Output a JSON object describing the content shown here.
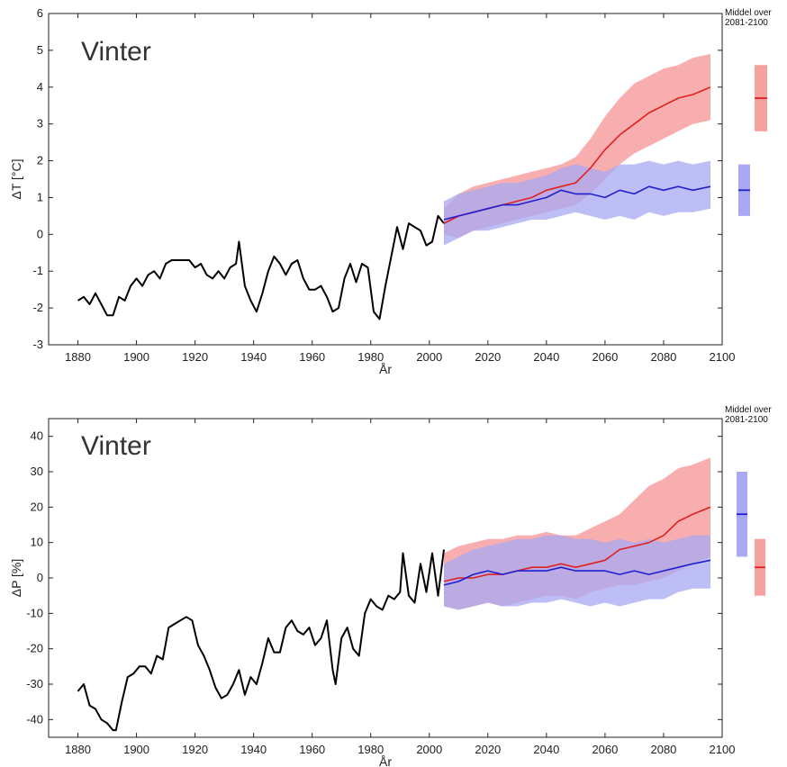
{
  "chart_data": [
    {
      "type": "line",
      "title": "Vinter",
      "xlabel": "År",
      "ylabel": "ΔT [°C]",
      "xlim": [
        1870,
        2100
      ],
      "ylim": [
        -3,
        6
      ],
      "xticks": [
        "1880",
        "1900",
        "1920",
        "1940",
        "1960",
        "1980",
        "2000",
        "2020",
        "2040",
        "2060",
        "2080",
        "2100"
      ],
      "yticks": [
        "-3",
        "-2",
        "-1",
        "0",
        "1",
        "2",
        "3",
        "4",
        "5",
        "6"
      ],
      "grid": false,
      "annotation": [
        "Middel over",
        "2081-2100"
      ],
      "colors": {
        "observed": "#000000",
        "high": "#e02020",
        "high_band": "#f7a0a0",
        "low": "#2020d0",
        "low_band": "#a8a8f4"
      },
      "series": [
        {
          "x": [
            1880,
            1882,
            1884,
            1886,
            1888,
            1890,
            1892,
            1894,
            1896,
            1898,
            1900,
            1902,
            1904,
            1906,
            1908,
            1910,
            1912,
            1914,
            1916,
            1918,
            1920,
            1922,
            1924,
            1926,
            1928,
            1930,
            1932,
            1934,
            1935,
            1937,
            1939,
            1941,
            1943,
            1945,
            1947,
            1949,
            1951,
            1953,
            1955,
            1957,
            1959,
            1961,
            1963,
            1965,
            1967,
            1969,
            1971,
            1973,
            1975,
            1977,
            1979,
            1981,
            1983,
            1985,
            1987,
            1989,
            1991,
            1993,
            1995,
            1997,
            1999,
            2001,
            2003,
            2005
          ],
          "values": [
            -1.8,
            -1.7,
            -1.9,
            -1.6,
            -1.9,
            -2.2,
            -2.2,
            -1.7,
            -1.8,
            -1.4,
            -1.2,
            -1.4,
            -1.1,
            -1.0,
            -1.2,
            -0.8,
            -0.7,
            -0.7,
            -0.7,
            -0.7,
            -0.9,
            -0.8,
            -1.1,
            -1.2,
            -1.0,
            -1.2,
            -0.9,
            -0.8,
            -0.2,
            -1.4,
            -1.8,
            -2.1,
            -1.6,
            -1.0,
            -0.6,
            -0.8,
            -1.1,
            -0.8,
            -0.7,
            -1.2,
            -1.5,
            -1.5,
            -1.4,
            -1.7,
            -2.1,
            -2.0,
            -1.2,
            -0.8,
            -1.3,
            -0.8,
            -0.9,
            -2.1,
            -2.3,
            -1.4,
            -0.6,
            0.2,
            -0.4,
            0.3,
            0.2,
            0.1,
            -0.3,
            -0.2,
            0.5,
            0.3
          ]
        },
        {
          "x": [
            2005,
            2010,
            2015,
            2020,
            2025,
            2030,
            2035,
            2040,
            2045,
            2050,
            2055,
            2060,
            2065,
            2070,
            2075,
            2080,
            2085,
            2090,
            2096
          ],
          "values": [
            0.3,
            0.5,
            0.6,
            0.7,
            0.8,
            0.9,
            1.0,
            1.2,
            1.3,
            1.4,
            1.8,
            2.3,
            2.7,
            3.0,
            3.3,
            3.5,
            3.7,
            3.8,
            4.0
          ]
        },
        {
          "x": [
            2005,
            2010,
            2015,
            2020,
            2025,
            2030,
            2035,
            2040,
            2045,
            2050,
            2055,
            2060,
            2065,
            2070,
            2075,
            2080,
            2085,
            2090,
            2096
          ],
          "values": [
            0.4,
            0.5,
            0.6,
            0.7,
            0.8,
            0.8,
            0.9,
            1.0,
            1.2,
            1.1,
            1.1,
            1.0,
            1.2,
            1.1,
            1.3,
            1.2,
            1.3,
            1.2,
            1.3
          ]
        }
      ],
      "bands": [
        {
          "x": [
            2005,
            2010,
            2015,
            2020,
            2025,
            2030,
            2035,
            2040,
            2045,
            2050,
            2055,
            2060,
            2065,
            2070,
            2075,
            2080,
            2085,
            2090,
            2096
          ],
          "lower": [
            0.0,
            -0.1,
            0.1,
            0.2,
            0.3,
            0.4,
            0.5,
            0.6,
            0.7,
            0.8,
            1.1,
            1.5,
            1.9,
            2.2,
            2.4,
            2.6,
            2.8,
            3.0,
            3.1
          ],
          "upper": [
            0.7,
            1.1,
            1.3,
            1.4,
            1.5,
            1.6,
            1.7,
            1.8,
            1.9,
            2.1,
            2.6,
            3.2,
            3.7,
            4.1,
            4.3,
            4.5,
            4.6,
            4.8,
            4.9
          ]
        },
        {
          "x": [
            2005,
            2010,
            2015,
            2020,
            2025,
            2030,
            2035,
            2040,
            2045,
            2050,
            2055,
            2060,
            2065,
            2070,
            2075,
            2080,
            2085,
            2090,
            2096
          ],
          "lower": [
            -0.3,
            -0.1,
            0.1,
            0.1,
            0.2,
            0.3,
            0.4,
            0.4,
            0.5,
            0.6,
            0.5,
            0.4,
            0.5,
            0.4,
            0.6,
            0.5,
            0.6,
            0.6,
            0.7
          ],
          "upper": [
            0.9,
            1.1,
            1.2,
            1.3,
            1.4,
            1.4,
            1.5,
            1.6,
            1.8,
            1.9,
            1.8,
            1.7,
            1.9,
            1.9,
            2.0,
            1.9,
            2.0,
            1.9,
            2.0
          ]
        }
      ],
      "summary_bars": [
        {
          "lower": 2.8,
          "upper": 4.6,
          "mean": 3.7
        },
        {
          "lower": 0.5,
          "upper": 1.9,
          "mean": 1.2
        }
      ]
    },
    {
      "type": "line",
      "title": "Vinter",
      "xlabel": "År",
      "ylabel": "ΔP [%]",
      "xlim": [
        1870,
        2100
      ],
      "ylim": [
        -45,
        45
      ],
      "xticks": [
        "1880",
        "1900",
        "1920",
        "1940",
        "1960",
        "1980",
        "2000",
        "2020",
        "2040",
        "2060",
        "2080",
        "2100"
      ],
      "yticks": [
        "-40",
        "-30",
        "-20",
        "-10",
        "0",
        "10",
        "20",
        "30",
        "40"
      ],
      "grid": false,
      "annotation": [
        "Middel over",
        "2081-2100"
      ],
      "colors": {
        "observed": "#000000",
        "high": "#e02020",
        "high_band": "#f7a0a0",
        "low": "#2020d0",
        "low_band": "#a8a8f4"
      },
      "series": [
        {
          "x": [
            1880,
            1882,
            1884,
            1886,
            1888,
            1890,
            1892,
            1893,
            1895,
            1897,
            1899,
            1901,
            1903,
            1905,
            1907,
            1909,
            1911,
            1913,
            1915,
            1917,
            1919,
            1921,
            1923,
            1925,
            1927,
            1929,
            1931,
            1933,
            1935,
            1937,
            1939,
            1941,
            1943,
            1945,
            1947,
            1949,
            1951,
            1953,
            1955,
            1957,
            1959,
            1961,
            1963,
            1965,
            1967,
            1968,
            1970,
            1972,
            1974,
            1976,
            1978,
            1980,
            1982,
            1984,
            1986,
            1988,
            1990,
            1991,
            1993,
            1995,
            1997,
            1999,
            2001,
            2003,
            2005
          ],
          "values": [
            -32,
            -30,
            -36,
            -37,
            -40,
            -41,
            -43,
            -43,
            -35,
            -28,
            -27,
            -25,
            -25,
            -27,
            -22,
            -23,
            -14,
            -13,
            -12,
            -11,
            -12,
            -19,
            -22,
            -26,
            -31,
            -34,
            -33,
            -30,
            -26,
            -33,
            -28,
            -30,
            -24,
            -17,
            -21,
            -21,
            -14,
            -12,
            -15,
            -16,
            -14,
            -19,
            -17,
            -12,
            -26,
            -30,
            -17,
            -14,
            -20,
            -22,
            -10,
            -6,
            -8,
            -9,
            -5,
            -6,
            -4,
            7,
            -5,
            -7,
            4,
            -4,
            7,
            -5,
            8
          ]
        },
        {
          "x": [
            2005,
            2010,
            2015,
            2020,
            2025,
            2030,
            2035,
            2040,
            2045,
            2050,
            2055,
            2060,
            2065,
            2070,
            2075,
            2080,
            2085,
            2090,
            2096
          ],
          "values": [
            -1,
            0,
            0,
            1,
            1,
            2,
            3,
            3,
            4,
            3,
            4,
            5,
            8,
            9,
            10,
            12,
            16,
            18,
            20
          ]
        },
        {
          "x": [
            2005,
            2010,
            2015,
            2020,
            2025,
            2030,
            2035,
            2040,
            2045,
            2050,
            2055,
            2060,
            2065,
            2070,
            2075,
            2080,
            2085,
            2090,
            2096
          ],
          "values": [
            -2,
            -1,
            1,
            2,
            1,
            2,
            2,
            2,
            3,
            2,
            2,
            2,
            1,
            2,
            1,
            2,
            3,
            4,
            5
          ]
        }
      ],
      "bands": [
        {
          "x": [
            2005,
            2010,
            2015,
            2020,
            2025,
            2030,
            2035,
            2040,
            2045,
            2050,
            2055,
            2060,
            2065,
            2070,
            2075,
            2080,
            2085,
            2090,
            2096
          ],
          "lower": [
            -8,
            -9,
            -8,
            -7,
            -8,
            -7,
            -6,
            -5,
            -5,
            -6,
            -4,
            -3,
            -2,
            -2,
            -1,
            0,
            2,
            4,
            6
          ],
          "upper": [
            7,
            9,
            10,
            11,
            11,
            12,
            12,
            13,
            12,
            12,
            14,
            16,
            18,
            22,
            26,
            28,
            31,
            32,
            34
          ]
        },
        {
          "x": [
            2005,
            2010,
            2015,
            2020,
            2025,
            2030,
            2035,
            2040,
            2045,
            2050,
            2055,
            2060,
            2065,
            2070,
            2075,
            2080,
            2085,
            2090,
            2096
          ],
          "lower": [
            -8,
            -9,
            -8,
            -7,
            -8,
            -8,
            -7,
            -7,
            -6,
            -7,
            -8,
            -7,
            -8,
            -7,
            -6,
            -6,
            -4,
            -3,
            -3
          ],
          "upper": [
            4,
            6,
            8,
            9,
            10,
            11,
            11,
            12,
            12,
            11,
            11,
            10,
            11,
            10,
            11,
            10,
            11,
            12,
            12
          ]
        }
      ],
      "summary_bars": [
        {
          "lower": -5,
          "upper": 11,
          "mean": 3
        },
        {
          "lower": 6,
          "upper": 30,
          "mean": 18
        }
      ]
    }
  ]
}
